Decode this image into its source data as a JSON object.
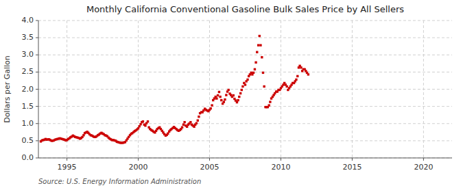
{
  "chart_data": {
    "type": "scatter",
    "title": "Monthly California Conventional Gasoline Bulk Sales Price by All Sellers",
    "ylabel": "Dollars per Gallon",
    "source": "Source: U.S. Energy Information Administration",
    "color": "#cc0000",
    "marker": "square",
    "grid": true,
    "xlim": [
      1993.0,
      2022.0
    ],
    "ylim": [
      0.0,
      4.0
    ],
    "xticks": [
      1995,
      2000,
      2005,
      2010,
      2015,
      2020
    ],
    "yticks": [
      {
        "value": 0.0,
        "label": "0.0"
      },
      0.5,
      {
        "value": 1.0,
        "label": "1.0"
      },
      1.5,
      {
        "value": 2.0,
        "label": "2.0"
      },
      2.5,
      {
        "value": 3.0,
        "label": "3.0"
      },
      3.5,
      {
        "value": 4.0,
        "label": "4.0"
      }
    ],
    "x": [
      1993.17,
      1993.25,
      1993.33,
      1993.42,
      1993.5,
      1993.58,
      1993.67,
      1993.75,
      1993.83,
      1993.92,
      1994.0,
      1994.08,
      1994.17,
      1994.25,
      1994.33,
      1994.42,
      1994.5,
      1994.58,
      1994.67,
      1994.75,
      1994.83,
      1994.92,
      1995.0,
      1995.08,
      1995.17,
      1995.25,
      1995.33,
      1995.42,
      1995.5,
      1995.58,
      1995.67,
      1995.75,
      1995.83,
      1995.92,
      1996.0,
      1996.08,
      1996.17,
      1996.25,
      1996.33,
      1996.42,
      1996.5,
      1996.58,
      1996.67,
      1996.75,
      1996.83,
      1996.92,
      1997.0,
      1997.08,
      1997.17,
      1997.25,
      1997.33,
      1997.42,
      1997.5,
      1997.58,
      1997.67,
      1997.75,
      1997.83,
      1997.92,
      1998.0,
      1998.08,
      1998.17,
      1998.25,
      1998.33,
      1998.42,
      1998.5,
      1998.58,
      1998.67,
      1998.75,
      1998.83,
      1998.92,
      1999.0,
      1999.08,
      1999.17,
      1999.25,
      1999.33,
      1999.42,
      1999.5,
      1999.58,
      1999.67,
      1999.75,
      1999.83,
      1999.92,
      2000.0,
      2000.08,
      2000.17,
      2000.25,
      2000.33,
      2000.42,
      2000.5,
      2000.58,
      2000.67,
      2000.75,
      2000.83,
      2000.92,
      2001.0,
      2001.08,
      2001.17,
      2001.25,
      2001.33,
      2001.42,
      2001.5,
      2001.58,
      2001.67,
      2001.75,
      2001.83,
      2001.92,
      2002.0,
      2002.08,
      2002.17,
      2002.25,
      2002.33,
      2002.42,
      2002.5,
      2002.58,
      2002.67,
      2002.75,
      2002.83,
      2002.92,
      2003.0,
      2003.08,
      2003.17,
      2003.25,
      2003.33,
      2003.42,
      2003.5,
      2003.58,
      2003.67,
      2003.75,
      2003.83,
      2003.92,
      2004.0,
      2004.08,
      2004.17,
      2004.25,
      2004.33,
      2004.42,
      2004.5,
      2004.58,
      2004.67,
      2004.75,
      2004.83,
      2004.92,
      2005.0,
      2005.08,
      2005.17,
      2005.25,
      2005.33,
      2005.42,
      2005.5,
      2005.58,
      2005.67,
      2005.75,
      2005.83,
      2005.92,
      2006.0,
      2006.08,
      2006.17,
      2006.25,
      2006.33,
      2006.42,
      2006.5,
      2006.58,
      2006.67,
      2006.75,
      2006.83,
      2006.92,
      2007.0,
      2007.08,
      2007.17,
      2007.25,
      2007.33,
      2007.42,
      2007.5,
      2007.58,
      2007.67,
      2007.75,
      2007.83,
      2007.92,
      2008.0,
      2008.08,
      2008.17,
      2008.25,
      2008.33,
      2008.42,
      2008.5,
      2008.58,
      2008.67,
      2008.75,
      2008.83,
      2008.92,
      2009.0,
      2009.08,
      2009.17,
      2009.25,
      2009.33,
      2009.42,
      2009.5,
      2009.58,
      2009.67,
      2009.75,
      2009.83,
      2009.92,
      2010.0,
      2010.08,
      2010.17,
      2010.25,
      2010.33,
      2010.42,
      2010.5,
      2010.58,
      2010.67,
      2010.75,
      2010.83,
      2010.92,
      2011.0,
      2011.08,
      2011.17,
      2011.25,
      2011.33,
      2011.42,
      2011.5,
      2011.58,
      2011.67,
      2011.75,
      2011.83,
      2011.92
    ],
    "values": [
      0.48,
      0.51,
      0.52,
      0.53,
      0.55,
      0.53,
      0.54,
      0.54,
      0.52,
      0.5,
      0.5,
      0.51,
      0.53,
      0.54,
      0.55,
      0.56,
      0.57,
      0.56,
      0.55,
      0.54,
      0.53,
      0.51,
      0.52,
      0.55,
      0.57,
      0.6,
      0.62,
      0.65,
      0.63,
      0.61,
      0.6,
      0.59,
      0.58,
      0.56,
      0.58,
      0.61,
      0.66,
      0.72,
      0.74,
      0.76,
      0.73,
      0.69,
      0.66,
      0.65,
      0.63,
      0.61,
      0.61,
      0.63,
      0.66,
      0.68,
      0.71,
      0.73,
      0.71,
      0.69,
      0.66,
      0.65,
      0.63,
      0.59,
      0.56,
      0.54,
      0.52,
      0.52,
      0.51,
      0.5,
      0.47,
      0.46,
      0.45,
      0.44,
      0.44,
      0.44,
      0.45,
      0.46,
      0.51,
      0.56,
      0.61,
      0.66,
      0.7,
      0.72,
      0.75,
      0.78,
      0.8,
      0.83,
      0.86,
      0.92,
      0.98,
      1.04,
      1.06,
      0.97,
      0.94,
      1.01,
      1.06,
      0.89,
      0.84,
      0.81,
      0.79,
      0.76,
      0.74,
      0.79,
      0.84,
      0.87,
      0.89,
      0.84,
      0.79,
      0.74,
      0.69,
      0.65,
      0.67,
      0.71,
      0.77,
      0.81,
      0.84,
      0.87,
      0.9,
      0.87,
      0.84,
      0.81,
      0.79,
      0.81,
      0.84,
      0.89,
      0.97,
      1.04,
      0.94,
      0.91,
      0.97,
      1.0,
      1.04,
      0.97,
      0.94,
      0.91,
      0.97,
      1.01,
      1.09,
      1.2,
      1.3,
      1.33,
      1.33,
      1.38,
      1.43,
      1.4,
      1.38,
      1.36,
      1.4,
      1.44,
      1.53,
      1.68,
      1.73,
      1.78,
      1.73,
      1.82,
      1.92,
      1.78,
      1.68,
      1.58,
      1.63,
      1.7,
      1.83,
      1.93,
      1.98,
      1.87,
      1.83,
      1.78,
      1.82,
      1.72,
      1.67,
      1.62,
      1.68,
      1.78,
      1.88,
      1.98,
      2.08,
      2.18,
      2.13,
      2.23,
      2.28,
      2.38,
      2.43,
      2.48,
      2.43,
      2.48,
      2.58,
      2.78,
      3.08,
      3.28,
      3.55,
      3.28,
      2.93,
      2.48,
      2.08,
      1.48,
      1.48,
      1.48,
      1.53,
      1.63,
      1.73,
      1.78,
      1.83,
      1.88,
      1.93,
      1.93,
      1.98,
      1.98,
      2.03,
      2.08,
      2.13,
      2.18,
      2.13,
      2.08,
      1.98,
      2.03,
      2.08,
      2.13,
      2.18,
      2.18,
      2.23,
      2.28,
      2.38,
      2.63,
      2.68,
      2.63,
      2.53,
      2.58,
      2.58,
      2.53,
      2.48,
      2.43
    ]
  }
}
